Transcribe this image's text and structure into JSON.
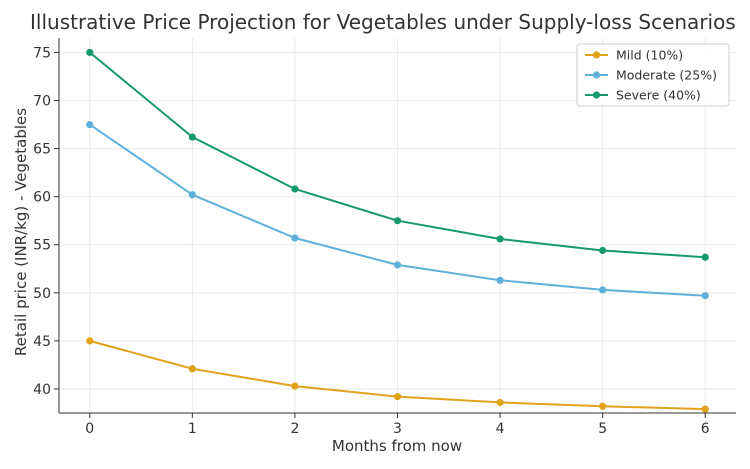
{
  "chart_data": {
    "type": "line",
    "title": "Illustrative Price Projection for Vegetables under Supply-loss Scenarios",
    "xlabel": "Months from now",
    "ylabel": "Retail price (INR/kg) - Vegetables",
    "x": [
      0,
      1,
      2,
      3,
      4,
      5,
      6
    ],
    "xlim": [
      -0.3,
      6.3
    ],
    "ylim": [
      37.5,
      76.5
    ],
    "xticks": [
      0,
      1,
      2,
      3,
      4,
      5,
      6
    ],
    "yticks": [
      40,
      45,
      50,
      55,
      60,
      65,
      70,
      75
    ],
    "grid": true,
    "legend_position": "top-right",
    "series": [
      {
        "name": "Mild (10%)",
        "color": "#E1A21C",
        "values": [
          45.0,
          42.1,
          40.3,
          39.2,
          38.6,
          38.2,
          37.9
        ]
      },
      {
        "name": "Moderate (25%)",
        "color": "#5EB0DA",
        "values": [
          67.5,
          60.2,
          55.7,
          52.9,
          51.3,
          50.3,
          49.7
        ]
      },
      {
        "name": "Severe (40%)",
        "color": "#16996C",
        "values": [
          75.0,
          66.2,
          60.8,
          57.5,
          55.6,
          54.4,
          53.7
        ]
      }
    ]
  }
}
